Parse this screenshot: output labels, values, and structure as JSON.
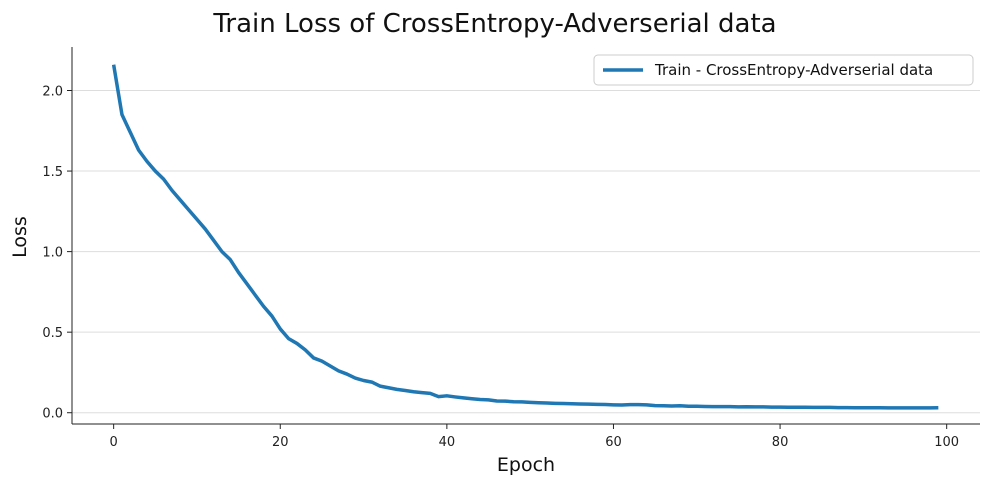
{
  "chart_data": {
    "type": "line",
    "title": "Train Loss of CrossEntropy-Adverserial data",
    "xlabel": "Epoch",
    "ylabel": "Loss",
    "xlim": [
      -5,
      104
    ],
    "ylim": [
      -0.07,
      2.27
    ],
    "xticks": [
      0,
      20,
      40,
      60,
      80,
      100
    ],
    "yticks": [
      0.0,
      0.5,
      1.0,
      1.5,
      2.0
    ],
    "xtick_labels": [
      "0",
      "20",
      "40",
      "60",
      "80",
      "100"
    ],
    "ytick_labels": [
      "0.0",
      "0.5",
      "1.0",
      "1.5",
      "2.0"
    ],
    "grid": "horizontal",
    "legend_position": "top-right",
    "series": [
      {
        "name": "Train - CrossEntropy-Adverserial data",
        "color": "#1f77b4",
        "x": [
          0,
          1,
          2,
          3,
          4,
          5,
          6,
          7,
          8,
          9,
          10,
          11,
          12,
          13,
          14,
          15,
          16,
          17,
          18,
          19,
          20,
          21,
          22,
          23,
          24,
          25,
          26,
          27,
          28,
          29,
          30,
          31,
          32,
          33,
          34,
          35,
          36,
          37,
          38,
          39,
          40,
          41,
          42,
          43,
          44,
          45,
          46,
          47,
          48,
          49,
          50,
          51,
          52,
          53,
          54,
          55,
          56,
          57,
          58,
          59,
          60,
          61,
          62,
          63,
          64,
          65,
          66,
          67,
          68,
          69,
          70,
          71,
          72,
          73,
          74,
          75,
          76,
          77,
          78,
          79,
          80,
          81,
          82,
          83,
          84,
          85,
          86,
          87,
          88,
          89,
          90,
          91,
          92,
          93,
          94,
          95,
          96,
          97,
          98,
          99
        ],
        "y": [
          2.16,
          1.85,
          1.74,
          1.63,
          1.56,
          1.5,
          1.45,
          1.38,
          1.32,
          1.26,
          1.2,
          1.14,
          1.07,
          1.0,
          0.95,
          0.87,
          0.8,
          0.73,
          0.66,
          0.6,
          0.52,
          0.46,
          0.43,
          0.39,
          0.34,
          0.32,
          0.29,
          0.26,
          0.24,
          0.215,
          0.2,
          0.19,
          0.165,
          0.155,
          0.145,
          0.138,
          0.13,
          0.125,
          0.12,
          0.1,
          0.105,
          0.098,
          0.092,
          0.087,
          0.082,
          0.08,
          0.073,
          0.072,
          0.068,
          0.067,
          0.064,
          0.062,
          0.06,
          0.058,
          0.057,
          0.056,
          0.054,
          0.053,
          0.052,
          0.051,
          0.049,
          0.048,
          0.05,
          0.05,
          0.049,
          0.044,
          0.043,
          0.042,
          0.043,
          0.04,
          0.04,
          0.039,
          0.038,
          0.038,
          0.038,
          0.036,
          0.037,
          0.036,
          0.036,
          0.035,
          0.035,
          0.034,
          0.034,
          0.034,
          0.033,
          0.033,
          0.033,
          0.032,
          0.032,
          0.031,
          0.031,
          0.031,
          0.031,
          0.03,
          0.03,
          0.03,
          0.03,
          0.03,
          0.03,
          0.031
        ]
      }
    ]
  }
}
